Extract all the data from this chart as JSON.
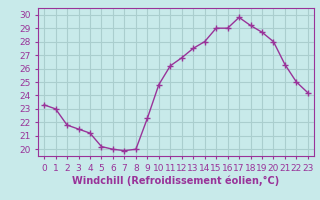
{
  "x": [
    0,
    1,
    2,
    3,
    4,
    5,
    6,
    7,
    8,
    9,
    10,
    11,
    12,
    13,
    14,
    15,
    16,
    17,
    18,
    19,
    20,
    21,
    22,
    23
  ],
  "y": [
    23.3,
    23.0,
    21.8,
    21.5,
    21.2,
    20.2,
    20.0,
    19.9,
    20.0,
    22.3,
    24.8,
    26.2,
    26.8,
    27.5,
    28.0,
    29.0,
    29.0,
    29.8,
    29.2,
    28.7,
    28.0,
    26.3,
    25.0,
    24.2
  ],
  "line_color": "#993399",
  "marker": "+",
  "bg_color": "#c8eaea",
  "grid_color": "#aacece",
  "xlabel": "Windchill (Refroidissement éolien,°C)",
  "ylim": [
    19.5,
    30.5
  ],
  "xlim": [
    -0.5,
    23.5
  ],
  "yticks": [
    20,
    21,
    22,
    23,
    24,
    25,
    26,
    27,
    28,
    29,
    30
  ],
  "xtick_labels": [
    "0",
    "1",
    "2",
    "3",
    "4",
    "5",
    "6",
    "7",
    "8",
    "9",
    "10",
    "11",
    "12",
    "13",
    "14",
    "15",
    "16",
    "17",
    "18",
    "19",
    "20",
    "21",
    "22",
    "23"
  ],
  "tick_color": "#993399",
  "label_color": "#993399",
  "spine_color": "#993399",
  "tick_fontsize": 6.5,
  "xlabel_fontsize": 7.0
}
